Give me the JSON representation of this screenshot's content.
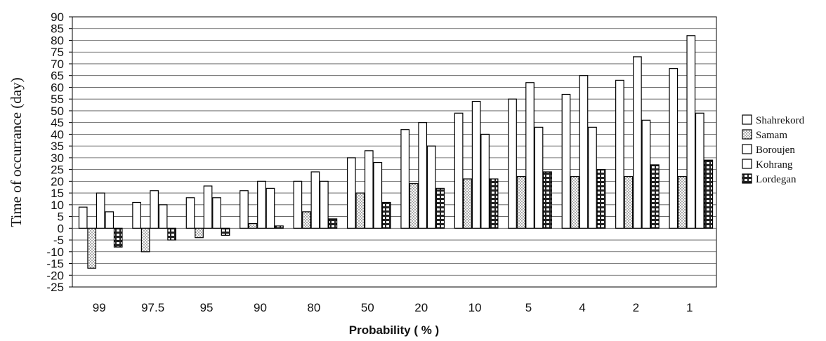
{
  "chart_data": {
    "type": "bar",
    "xlabel": "Probability ( % )",
    "ylabel": "Time of occurrance (day)",
    "ylim": [
      -25,
      90
    ],
    "ytick_step": 5,
    "grid": true,
    "legend_placement": "right",
    "categories": [
      "99",
      "97.5",
      "95",
      "90",
      "80",
      "50",
      "20",
      "10",
      "5",
      "4",
      "2",
      "1"
    ],
    "series": [
      {
        "name": "Shahrekord",
        "pattern": "blank",
        "values": [
          9,
          11,
          13,
          16,
          20,
          30,
          42,
          49,
          55,
          57,
          63,
          68
        ]
      },
      {
        "name": "Samam",
        "pattern": "dots",
        "values": [
          -17,
          -10,
          -4,
          2,
          7,
          15,
          19,
          21,
          22,
          22,
          22,
          22
        ]
      },
      {
        "name": "Boroujen",
        "pattern": "blank",
        "values": [
          15,
          16,
          18,
          20,
          24,
          33,
          45,
          54,
          62,
          65,
          73,
          82
        ]
      },
      {
        "name": "Kohrang",
        "pattern": "blank",
        "values": [
          7,
          10,
          13,
          17,
          20,
          28,
          35,
          40,
          43,
          43,
          46,
          49
        ]
      },
      {
        "name": "Lordegan",
        "pattern": "stripes",
        "values": [
          -8,
          -5,
          -3,
          1,
          4,
          11,
          17,
          21,
          24,
          25,
          27,
          29
        ]
      }
    ]
  }
}
